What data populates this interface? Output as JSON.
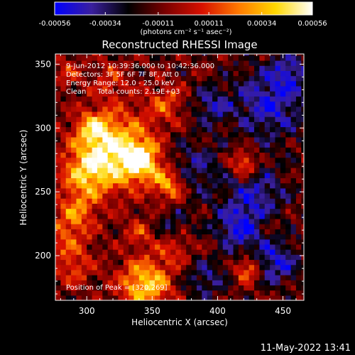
{
  "colorbar": {
    "tick_labels": [
      "-0.00056",
      "-0.00034",
      "-0.00011",
      "0.00011",
      "0.00034",
      "0.00056"
    ],
    "tick_values": [
      -0.00056,
      -0.00034,
      -0.00011,
      0.00011,
      0.00034,
      0.00056
    ],
    "range": [
      -0.00056,
      0.00056
    ],
    "units_label": "(photons cm⁻² s⁻¹ asec⁻²)",
    "colors": [
      "#0000ff",
      "#3a1f9e",
      "#000000",
      "#7a0000",
      "#d81000",
      "#ff7a00",
      "#ffd800",
      "#ffffff"
    ]
  },
  "chart_data": {
    "type": "heatmap",
    "title": "Reconstructed RHESSI Image",
    "xlabel": "Heliocentric X (arcsec)",
    "ylabel": "Heliocentric Y (arcsec)",
    "xlim": [
      276,
      466
    ],
    "ylim": [
      165,
      358
    ],
    "x_ticks": [
      300,
      350,
      400,
      450
    ],
    "y_ticks": [
      200,
      250,
      300,
      350
    ],
    "annotations": [
      "9-Jun-2012 10:39:36.000 to 10:42:36.000",
      "Detectors: 3F 5F 6F 7F 8F, Att 0",
      "Energy Range: 12.0 - 25.0 keV",
      "Clean     Total counts: 2.19E+03"
    ],
    "peak_label": "Position of Peak = [320,269]",
    "peak": [
      320,
      269
    ],
    "blobs": [
      {
        "x": 322,
        "y": 283,
        "s": 20,
        "amp": 0.00056
      },
      {
        "x": 342,
        "y": 274,
        "s": 10,
        "amp": 0.00048
      },
      {
        "x": 363,
        "y": 256,
        "s": 9,
        "amp": 0.00046
      },
      {
        "x": 305,
        "y": 300,
        "s": 9,
        "amp": 0.00034
      },
      {
        "x": 300,
        "y": 265,
        "s": 14,
        "amp": 0.00038
      },
      {
        "x": 293,
        "y": 236,
        "s": 10,
        "amp": 0.00028
      },
      {
        "x": 285,
        "y": 215,
        "s": 12,
        "amp": 0.00026
      },
      {
        "x": 290,
        "y": 190,
        "s": 10,
        "amp": 0.00022
      },
      {
        "x": 345,
        "y": 178,
        "s": 14,
        "amp": 0.00052
      },
      {
        "x": 368,
        "y": 205,
        "s": 9,
        "amp": 0.0002
      },
      {
        "x": 340,
        "y": 218,
        "s": 8,
        "amp": 0.00022
      },
      {
        "x": 360,
        "y": 320,
        "s": 11,
        "amp": 0.00024
      },
      {
        "x": 318,
        "y": 338,
        "s": 10,
        "amp": 0.0002
      },
      {
        "x": 285,
        "y": 345,
        "s": 8,
        "amp": 0.00018
      },
      {
        "x": 420,
        "y": 272,
        "s": 7,
        "amp": 0.0004
      },
      {
        "x": 423,
        "y": 190,
        "s": 7,
        "amp": 0.0004
      },
      {
        "x": 397,
        "y": 208,
        "s": 6,
        "amp": 0.00012
      },
      {
        "x": 440,
        "y": 226,
        "s": 6,
        "amp": 0.00012
      },
      {
        "x": 380,
        "y": 268,
        "s": 16,
        "amp": -0.00024
      },
      {
        "x": 440,
        "y": 320,
        "s": 20,
        "amp": -0.00034
      },
      {
        "x": 395,
        "y": 318,
        "s": 10,
        "amp": -0.00026
      },
      {
        "x": 430,
        "y": 248,
        "s": 16,
        "amp": -0.00028
      },
      {
        "x": 415,
        "y": 220,
        "s": 14,
        "amp": -0.00032
      },
      {
        "x": 445,
        "y": 195,
        "s": 12,
        "amp": -0.00034
      },
      {
        "x": 390,
        "y": 182,
        "s": 12,
        "amp": -0.00022
      },
      {
        "x": 455,
        "y": 345,
        "s": 10,
        "amp": -0.00024
      },
      {
        "x": 365,
        "y": 225,
        "s": 8,
        "amp": -0.00018
      }
    ]
  },
  "timestamp": "11-May-2022 13:41"
}
